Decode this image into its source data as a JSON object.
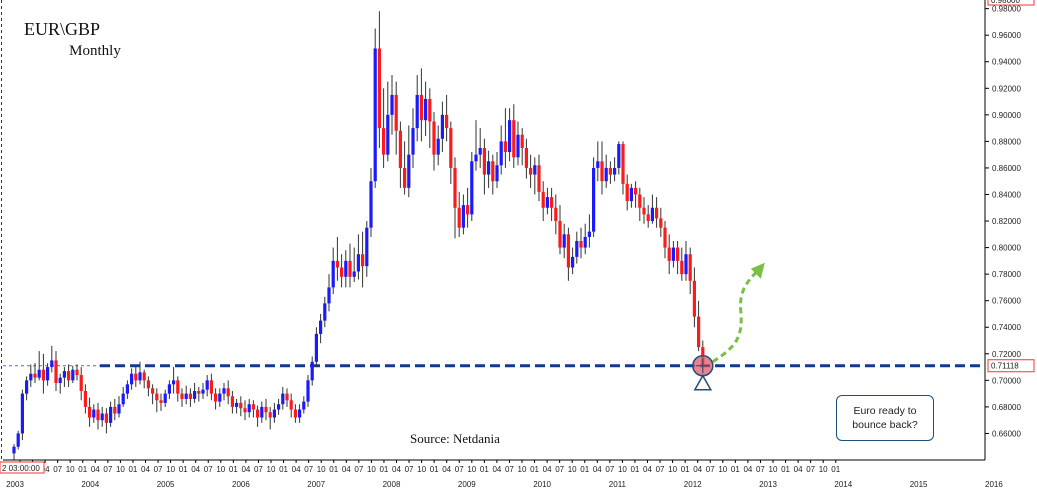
{
  "header": {
    "title": "EUR\\GBP",
    "subtitle": "Monthly"
  },
  "source_label": "Source: Netdania",
  "callout": {
    "text": "Euro ready to bounce back?"
  },
  "price_tag": "0.71118",
  "time_tag": "2 03:00:00",
  "top_tag": "0.98000",
  "colors": {
    "up": "#1a1aff",
    "down": "#ff1a1a",
    "support_line": "#123a8c",
    "arrow": "#77c043",
    "marker": "#e05a6a"
  },
  "chart_data": {
    "type": "candlestick",
    "title": "EUR\\GBP",
    "subtitle": "Monthly",
    "ylim": [
      0.64,
      0.985
    ],
    "y_ticks": [
      "0.66000",
      "0.68000",
      "0.70000",
      "0.72000",
      "0.74000",
      "0.76000",
      "0.78000",
      "0.80000",
      "0.82000",
      "0.84000",
      "0.86000",
      "0.88000",
      "0.90000",
      "0.92000",
      "0.94000",
      "0.96000",
      "0.98000"
    ],
    "month_labels": [
      "10",
      "01",
      "04",
      "07",
      "10",
      "01",
      "04",
      "07",
      "10",
      "01",
      "04",
      "07",
      "10",
      "01",
      "04",
      "07",
      "10",
      "01",
      "04",
      "07",
      "10",
      "01",
      "04",
      "07",
      "10",
      "01",
      "04",
      "07",
      "10",
      "01",
      "04",
      "07",
      "10",
      "01",
      "04",
      "07",
      "10",
      "01",
      "04",
      "07",
      "10",
      "01",
      "04",
      "07",
      "10",
      "01",
      "04",
      "07",
      "10",
      "01",
      "04",
      "07",
      "10",
      "01",
      "04",
      "07",
      "10",
      "01",
      "04",
      "07",
      "10",
      "01",
      "04",
      "07",
      "10",
      "01"
    ],
    "year_labels": [
      "2003",
      "2004",
      "2005",
      "2006",
      "2007",
      "2008",
      "2009",
      "2010",
      "2011",
      "2012",
      "2013",
      "2014",
      "2015",
      "2016"
    ],
    "support_level": 0.711,
    "last_price": 0.71118,
    "candles": [
      [
        0.645,
        0.65,
        0.64,
        0.652
      ],
      [
        0.65,
        0.66,
        0.648,
        0.662
      ],
      [
        0.66,
        0.69,
        0.655,
        0.693
      ],
      [
        0.69,
        0.7,
        0.685,
        0.703
      ],
      [
        0.7,
        0.705,
        0.695,
        0.712
      ],
      [
        0.705,
        0.702,
        0.698,
        0.713
      ],
      [
        0.702,
        0.708,
        0.7,
        0.722
      ],
      [
        0.708,
        0.7,
        0.69,
        0.72
      ],
      [
        0.7,
        0.71,
        0.696,
        0.713
      ],
      [
        0.71,
        0.715,
        0.706,
        0.726
      ],
      [
        0.715,
        0.698,
        0.692,
        0.722
      ],
      [
        0.698,
        0.702,
        0.69,
        0.705
      ],
      [
        0.702,
        0.707,
        0.695,
        0.71
      ],
      [
        0.707,
        0.7,
        0.695,
        0.712
      ],
      [
        0.7,
        0.708,
        0.698,
        0.711
      ],
      [
        0.708,
        0.704,
        0.7,
        0.712
      ],
      [
        0.704,
        0.692,
        0.685,
        0.71
      ],
      [
        0.692,
        0.68,
        0.675,
        0.697
      ],
      [
        0.68,
        0.672,
        0.665,
        0.687
      ],
      [
        0.672,
        0.678,
        0.668,
        0.682
      ],
      [
        0.678,
        0.67,
        0.663,
        0.683
      ],
      [
        0.67,
        0.675,
        0.665,
        0.68
      ],
      [
        0.675,
        0.668,
        0.66,
        0.679
      ],
      [
        0.668,
        0.68,
        0.665,
        0.684
      ],
      [
        0.68,
        0.675,
        0.67,
        0.686
      ],
      [
        0.675,
        0.682,
        0.672,
        0.688
      ],
      [
        0.682,
        0.69,
        0.68,
        0.695
      ],
      [
        0.69,
        0.697,
        0.686,
        0.7
      ],
      [
        0.697,
        0.705,
        0.693,
        0.709
      ],
      [
        0.705,
        0.7,
        0.695,
        0.71
      ],
      [
        0.7,
        0.706,
        0.697,
        0.714
      ],
      [
        0.706,
        0.7,
        0.694,
        0.708
      ],
      [
        0.7,
        0.694,
        0.688,
        0.703
      ],
      [
        0.694,
        0.69,
        0.682,
        0.697
      ],
      [
        0.69,
        0.685,
        0.676,
        0.694
      ],
      [
        0.685,
        0.683,
        0.677,
        0.69
      ],
      [
        0.683,
        0.69,
        0.68,
        0.693
      ],
      [
        0.69,
        0.697,
        0.686,
        0.7
      ],
      [
        0.697,
        0.7,
        0.69,
        0.71
      ],
      [
        0.7,
        0.69,
        0.684,
        0.703
      ],
      [
        0.69,
        0.686,
        0.68,
        0.694
      ],
      [
        0.686,
        0.69,
        0.682,
        0.696
      ],
      [
        0.69,
        0.686,
        0.68,
        0.694
      ],
      [
        0.686,
        0.692,
        0.683,
        0.698
      ],
      [
        0.692,
        0.69,
        0.684,
        0.695
      ],
      [
        0.69,
        0.693,
        0.686,
        0.698
      ],
      [
        0.693,
        0.7,
        0.688,
        0.704
      ],
      [
        0.7,
        0.69,
        0.685,
        0.705
      ],
      [
        0.69,
        0.684,
        0.678,
        0.694
      ],
      [
        0.684,
        0.69,
        0.68,
        0.694
      ],
      [
        0.69,
        0.694,
        0.685,
        0.698
      ],
      [
        0.694,
        0.688,
        0.682,
        0.7
      ],
      [
        0.688,
        0.68,
        0.675,
        0.692
      ],
      [
        0.68,
        0.683,
        0.675,
        0.686
      ],
      [
        0.683,
        0.679,
        0.673,
        0.688
      ],
      [
        0.679,
        0.676,
        0.67,
        0.685
      ],
      [
        0.676,
        0.682,
        0.672,
        0.686
      ],
      [
        0.682,
        0.678,
        0.672,
        0.685
      ],
      [
        0.678,
        0.672,
        0.665,
        0.681
      ],
      [
        0.672,
        0.68,
        0.668,
        0.684
      ],
      [
        0.68,
        0.676,
        0.67,
        0.686
      ],
      [
        0.676,
        0.672,
        0.663,
        0.68
      ],
      [
        0.672,
        0.678,
        0.668,
        0.683
      ],
      [
        0.678,
        0.682,
        0.674,
        0.686
      ],
      [
        0.682,
        0.69,
        0.678,
        0.695
      ],
      [
        0.69,
        0.685,
        0.68,
        0.694
      ],
      [
        0.685,
        0.678,
        0.672,
        0.69
      ],
      [
        0.678,
        0.672,
        0.668,
        0.682
      ],
      [
        0.672,
        0.678,
        0.668,
        0.682
      ],
      [
        0.678,
        0.684,
        0.675,
        0.688
      ],
      [
        0.684,
        0.7,
        0.68,
        0.704
      ],
      [
        0.7,
        0.714,
        0.696,
        0.718
      ],
      [
        0.714,
        0.735,
        0.71,
        0.74
      ],
      [
        0.735,
        0.745,
        0.728,
        0.75
      ],
      [
        0.745,
        0.758,
        0.74,
        0.763
      ],
      [
        0.758,
        0.77,
        0.752,
        0.78
      ],
      [
        0.77,
        0.79,
        0.765,
        0.8
      ],
      [
        0.79,
        0.785,
        0.775,
        0.808
      ],
      [
        0.785,
        0.778,
        0.77,
        0.795
      ],
      [
        0.778,
        0.79,
        0.77,
        0.798
      ],
      [
        0.79,
        0.778,
        0.77,
        0.803
      ],
      [
        0.778,
        0.782,
        0.774,
        0.8
      ],
      [
        0.782,
        0.795,
        0.776,
        0.81
      ],
      [
        0.795,
        0.786,
        0.77,
        0.812
      ],
      [
        0.786,
        0.815,
        0.778,
        0.82
      ],
      [
        0.815,
        0.85,
        0.808,
        0.86
      ],
      [
        0.85,
        0.95,
        0.845,
        0.965
      ],
      [
        0.95,
        0.89,
        0.875,
        0.978
      ],
      [
        0.89,
        0.87,
        0.86,
        0.92
      ],
      [
        0.87,
        0.9,
        0.865,
        0.925
      ],
      [
        0.9,
        0.915,
        0.885,
        0.93
      ],
      [
        0.915,
        0.888,
        0.87,
        0.925
      ],
      [
        0.888,
        0.86,
        0.845,
        0.895
      ],
      [
        0.86,
        0.845,
        0.84,
        0.88
      ],
      [
        0.845,
        0.87,
        0.838,
        0.892
      ],
      [
        0.87,
        0.89,
        0.86,
        0.905
      ],
      [
        0.89,
        0.915,
        0.88,
        0.93
      ],
      [
        0.915,
        0.896,
        0.88,
        0.935
      ],
      [
        0.896,
        0.912,
        0.884,
        0.925
      ],
      [
        0.912,
        0.895,
        0.875,
        0.92
      ],
      [
        0.895,
        0.87,
        0.858,
        0.902
      ],
      [
        0.87,
        0.882,
        0.862,
        0.892
      ],
      [
        0.882,
        0.9,
        0.872,
        0.91
      ],
      [
        0.9,
        0.89,
        0.88,
        0.915
      ],
      [
        0.89,
        0.86,
        0.848,
        0.895
      ],
      [
        0.86,
        0.83,
        0.807,
        0.868
      ],
      [
        0.83,
        0.815,
        0.808,
        0.842
      ],
      [
        0.815,
        0.832,
        0.81,
        0.84
      ],
      [
        0.832,
        0.825,
        0.815,
        0.845
      ],
      [
        0.825,
        0.865,
        0.82,
        0.872
      ],
      [
        0.865,
        0.87,
        0.858,
        0.896
      ],
      [
        0.87,
        0.875,
        0.86,
        0.89
      ],
      [
        0.875,
        0.855,
        0.84,
        0.882
      ],
      [
        0.855,
        0.865,
        0.845,
        0.873
      ],
      [
        0.865,
        0.85,
        0.84,
        0.87
      ],
      [
        0.85,
        0.862,
        0.845,
        0.872
      ],
      [
        0.862,
        0.88,
        0.855,
        0.892
      ],
      [
        0.88,
        0.872,
        0.86,
        0.905
      ],
      [
        0.872,
        0.896,
        0.865,
        0.905
      ],
      [
        0.896,
        0.868,
        0.86,
        0.908
      ],
      [
        0.868,
        0.885,
        0.862,
        0.895
      ],
      [
        0.885,
        0.875,
        0.862,
        0.89
      ],
      [
        0.875,
        0.86,
        0.852,
        0.882
      ],
      [
        0.86,
        0.855,
        0.845,
        0.87
      ],
      [
        0.855,
        0.862,
        0.84,
        0.868
      ],
      [
        0.862,
        0.842,
        0.835,
        0.87
      ],
      [
        0.842,
        0.83,
        0.82,
        0.85
      ],
      [
        0.83,
        0.838,
        0.825,
        0.845
      ],
      [
        0.838,
        0.83,
        0.82,
        0.845
      ],
      [
        0.83,
        0.82,
        0.81,
        0.84
      ],
      [
        0.82,
        0.8,
        0.795,
        0.832
      ],
      [
        0.8,
        0.81,
        0.792,
        0.818
      ],
      [
        0.81,
        0.785,
        0.775,
        0.815
      ],
      [
        0.785,
        0.793,
        0.78,
        0.8
      ],
      [
        0.793,
        0.805,
        0.788,
        0.812
      ],
      [
        0.805,
        0.8,
        0.792,
        0.815
      ],
      [
        0.8,
        0.808,
        0.795,
        0.818
      ],
      [
        0.808,
        0.812,
        0.8,
        0.825
      ],
      [
        0.812,
        0.86,
        0.808,
        0.868
      ],
      [
        0.86,
        0.865,
        0.85,
        0.88
      ],
      [
        0.865,
        0.85,
        0.84,
        0.88
      ],
      [
        0.85,
        0.86,
        0.845,
        0.87
      ],
      [
        0.86,
        0.855,
        0.848,
        0.865
      ],
      [
        0.855,
        0.86,
        0.85,
        0.868
      ],
      [
        0.86,
        0.878,
        0.855,
        0.88
      ],
      [
        0.878,
        0.848,
        0.84,
        0.88
      ],
      [
        0.848,
        0.835,
        0.828,
        0.855
      ],
      [
        0.835,
        0.845,
        0.83,
        0.848
      ],
      [
        0.845,
        0.84,
        0.83,
        0.85
      ],
      [
        0.84,
        0.83,
        0.82,
        0.845
      ],
      [
        0.83,
        0.825,
        0.818,
        0.838
      ],
      [
        0.825,
        0.82,
        0.815,
        0.832
      ],
      [
        0.82,
        0.83,
        0.818,
        0.84
      ],
      [
        0.83,
        0.822,
        0.815,
        0.838
      ],
      [
        0.822,
        0.815,
        0.808,
        0.83
      ],
      [
        0.815,
        0.8,
        0.792,
        0.82
      ],
      [
        0.8,
        0.79,
        0.78,
        0.81
      ],
      [
        0.79,
        0.8,
        0.785,
        0.805
      ],
      [
        0.8,
        0.79,
        0.78,
        0.805
      ],
      [
        0.79,
        0.78,
        0.775,
        0.8
      ],
      [
        0.78,
        0.795,
        0.775,
        0.805
      ],
      [
        0.795,
        0.775,
        0.765,
        0.8
      ],
      [
        0.775,
        0.748,
        0.74,
        0.785
      ],
      [
        0.748,
        0.725,
        0.722,
        0.76
      ],
      [
        0.725,
        0.711,
        0.705,
        0.73
      ]
    ]
  }
}
